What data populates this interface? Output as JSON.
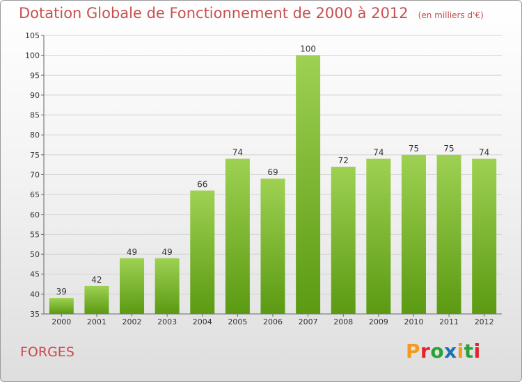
{
  "header": {
    "title": "Dotation Globale de Fonctionnement de 2000 à 2012",
    "unit": "(en milliers d'€)"
  },
  "footer": {
    "place": "FORGES",
    "logo": {
      "letters": [
        "P",
        "r",
        "o",
        "x",
        "i",
        "t",
        "i"
      ],
      "colors": [
        "#f39a1e",
        "#e2232a",
        "#27a236",
        "#1d6fb7",
        "#f39a1e",
        "#27a236",
        "#e2232a"
      ]
    }
  },
  "colors": {
    "bar_top": "#9ed152",
    "bar_bottom": "#5b9a12",
    "title": "#c85050"
  },
  "chart_data": {
    "type": "bar",
    "title": "Dotation Globale de Fonctionnement de 2000 à 2012",
    "subtitle": "(en milliers d'€)",
    "categories": [
      "2000",
      "2001",
      "2002",
      "2003",
      "2004",
      "2005",
      "2006",
      "2007",
      "2008",
      "2009",
      "2010",
      "2011",
      "2012"
    ],
    "values": [
      39,
      42,
      49,
      49,
      66,
      74,
      69,
      100,
      72,
      74,
      75,
      75,
      74
    ],
    "data_labels": [
      "39",
      "42",
      "49",
      "49",
      "66",
      "74",
      "69",
      "100",
      "72",
      "74",
      "75",
      "75",
      "74"
    ],
    "xlabel": "",
    "ylabel": "",
    "ylim": [
      35,
      105
    ],
    "yticks": [
      35,
      40,
      45,
      50,
      55,
      60,
      65,
      70,
      75,
      80,
      85,
      90,
      95,
      100,
      105
    ],
    "grid": true
  }
}
